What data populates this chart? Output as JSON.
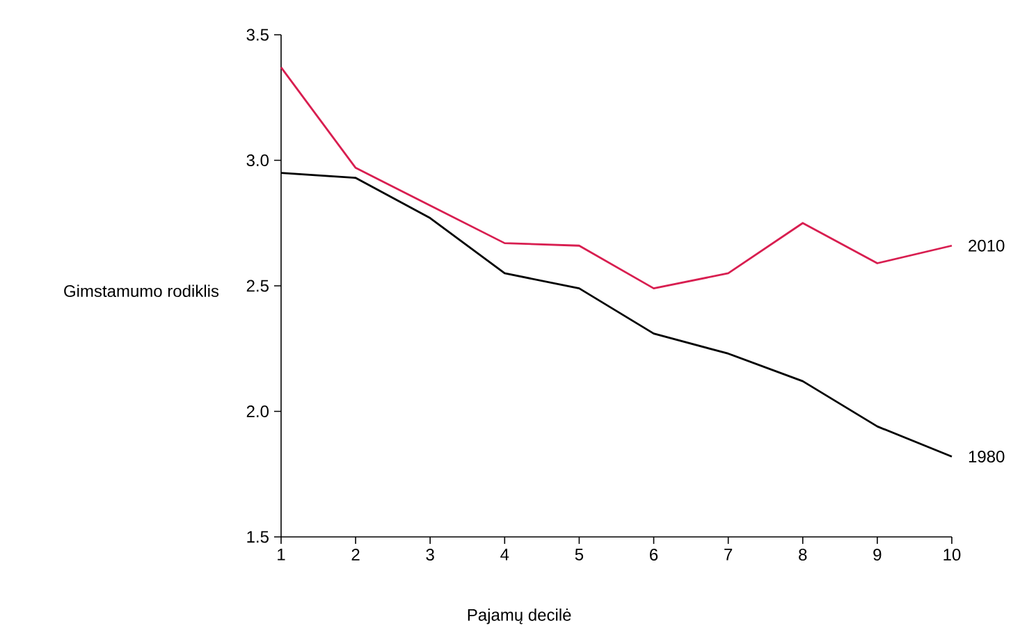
{
  "chart_data": {
    "type": "line",
    "xlabel": "Pajamų decilė",
    "ylabel": "Gimstamumo rodiklis",
    "x": [
      1,
      2,
      3,
      4,
      5,
      6,
      7,
      8,
      9,
      10
    ],
    "series": [
      {
        "name": "2010",
        "color": "#d81e50",
        "values": [
          3.37,
          2.97,
          2.82,
          2.67,
          2.66,
          2.49,
          2.55,
          2.75,
          2.59,
          2.66
        ]
      },
      {
        "name": "1980",
        "color": "#000000",
        "values": [
          2.95,
          2.93,
          2.77,
          2.55,
          2.49,
          2.31,
          2.23,
          2.12,
          1.94,
          1.82
        ]
      }
    ],
    "xlim": [
      1,
      10
    ],
    "xticks": [
      1,
      2,
      3,
      4,
      5,
      6,
      7,
      8,
      9,
      10
    ],
    "ylim": [
      1.5,
      3.5
    ],
    "yticks": [
      1.5,
      {
        "value": 2,
        "label": "2.0"
      },
      2.5,
      {
        "value": 3,
        "label": "3.0"
      },
      3.5
    ],
    "grid": false,
    "legend": false,
    "marker": "none",
    "line_style": "solid"
  }
}
